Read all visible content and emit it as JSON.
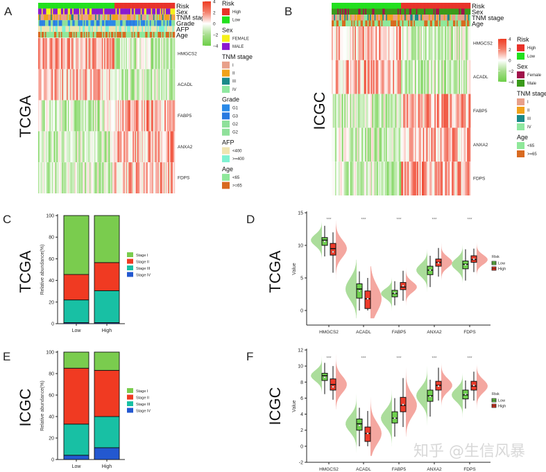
{
  "watermark": "知乎 @生信风暴",
  "panels": {
    "A": {
      "label": "A",
      "cohort": "TCGA"
    },
    "B": {
      "label": "B",
      "cohort": "ICGC"
    },
    "C": {
      "label": "C",
      "cohort": "TCGA"
    },
    "D": {
      "label": "D",
      "cohort": "TCGA"
    },
    "E": {
      "label": "E",
      "cohort": "ICGC"
    },
    "F": {
      "label": "F",
      "cohort": "ICGC"
    }
  },
  "colors": {
    "high": "#e8332a",
    "low": "#22e01e",
    "heat_high": "#ee3b22",
    "heat_mid": "#ffffff",
    "heat_low": "#6ccf47",
    "stage_I": "#7acc4e",
    "stage_II": "#f03a22",
    "stage_III": "#18c0a4",
    "stage_IV": "#2358d0",
    "violin_low": "#8fd27a",
    "violin_high": "#f08a80"
  },
  "chart_data": [
    {
      "panel": "A",
      "type": "heatmap",
      "title": "TCGA",
      "annotation_rows": [
        "Risk",
        "Sex",
        "TNM stage",
        "Grade",
        "AFP",
        "Age"
      ],
      "genes": [
        "HMGCS2",
        "ACADL",
        "FABP5",
        "ANXA2",
        "FDPS"
      ],
      "groups": [
        "Low",
        "High"
      ],
      "low_fraction": 0.56,
      "gene_trend_low_vs_high": {
        "HMGCS2": "higher in Low",
        "ACADL": "higher in Low",
        "FABP5": "higher in High",
        "ANXA2": "higher in High",
        "FDPS": "higher in High"
      },
      "color_scale": {
        "ticks": [
          4,
          2,
          0,
          -2,
          -4
        ]
      },
      "legends": [
        {
          "title": "Risk",
          "items": [
            {
              "label": "High",
              "color": "#e8332a"
            },
            {
              "label": "Low",
              "color": "#22e01e"
            }
          ]
        },
        {
          "title": "Sex",
          "items": [
            {
              "label": "FEMALE",
              "color": "#f5f01a"
            },
            {
              "label": "MALE",
              "color": "#8a1ad0"
            }
          ]
        },
        {
          "title": "TNM stage",
          "items": [
            {
              "label": "I",
              "color": "#e8a08a"
            },
            {
              "label": "II",
              "color": "#f0a21a"
            },
            {
              "label": "III",
              "color": "#1a8a8a"
            },
            {
              "label": "IV",
              "color": "#8fe8a0"
            }
          ]
        },
        {
          "title": "Grade",
          "items": [
            {
              "label": "G1",
              "color": "#2a8ae8"
            },
            {
              "label": "G3",
              "color": "#2a7ae0"
            },
            {
              "label": "G2",
              "color": "#8fe09a"
            },
            {
              "label": "G2",
              "color": "#8fe09a"
            }
          ]
        },
        {
          "title": "AFP",
          "items": [
            {
              "label": "<400",
              "color": "#efe4b0"
            },
            {
              "label": ">=400",
              "color": "#7ff2d2"
            }
          ]
        },
        {
          "title": "Age",
          "items": [
            {
              "label": "<65",
              "color": "#8fe89a"
            },
            {
              "label": ">=65",
              "color": "#d86a20"
            }
          ]
        }
      ]
    },
    {
      "panel": "B",
      "type": "heatmap",
      "title": "ICGC",
      "annotation_rows": [
        "Risk",
        "Sex",
        "TNM stage",
        "Age"
      ],
      "genes": [
        "HMGCS2",
        "ACADL",
        "FABP5",
        "ANXA2",
        "FDPS"
      ],
      "groups": [
        "Low",
        "High"
      ],
      "low_fraction": 0.5,
      "gene_trend_low_vs_high": {
        "HMGCS2": "higher in Low",
        "ACADL": "higher in Low",
        "FABP5": "higher in High",
        "ANXA2": "higher in High",
        "FDPS": "higher in High"
      },
      "color_scale": {
        "ticks": [
          4,
          2,
          0,
          -2,
          -4
        ]
      },
      "legends": [
        {
          "title": "Risk",
          "items": [
            {
              "label": "High",
              "color": "#e8332a"
            },
            {
              "label": "Low",
              "color": "#22e01e"
            }
          ]
        },
        {
          "title": "Sex",
          "items": [
            {
              "label": "Female",
              "color": "#a0124a"
            },
            {
              "label": "Male",
              "color": "#3a9a1a"
            }
          ]
        },
        {
          "title": "TNM stage",
          "items": [
            {
              "label": "I",
              "color": "#e8a08a"
            },
            {
              "label": "II",
              "color": "#f0a21a"
            },
            {
              "label": "III",
              "color": "#1a8a8a"
            },
            {
              "label": "IV",
              "color": "#8fe8a0"
            }
          ]
        },
        {
          "title": "Age",
          "items": [
            {
              "label": "<65",
              "color": "#8fe89a"
            },
            {
              "label": ">=65",
              "color": "#d86a20"
            }
          ]
        }
      ]
    },
    {
      "panel": "C",
      "type": "bar",
      "stacked": true,
      "title": "TCGA",
      "ylabel": "Relative abundance(%)",
      "xlabel": "",
      "ylim": [
        0,
        100
      ],
      "yticks": [
        0,
        20,
        40,
        60,
        80,
        100
      ],
      "categories": [
        "Low",
        "High"
      ],
      "series": [
        {
          "name": "Stage IV",
          "values": [
            1,
            1
          ]
        },
        {
          "name": "Stage III",
          "values": [
            21,
            29.5
          ]
        },
        {
          "name": "Stage II",
          "values": [
            23.5,
            26
          ]
        },
        {
          "name": "Stage I",
          "values": [
            54.5,
            43.5
          ]
        }
      ],
      "legend_order": [
        "Stage I",
        "Stage II",
        "Stage III",
        "Stage IV"
      ],
      "legend": "right"
    },
    {
      "panel": "D",
      "type": "box",
      "subtype": "half-violin with boxplot",
      "title": "TCGA",
      "ylabel": "Value",
      "ylim": [
        -2,
        15
      ],
      "yticks": [
        0,
        5,
        10,
        15
      ],
      "categories": [
        "HMGCS2",
        "ACADL",
        "FABP5",
        "ANXA2",
        "FDPS"
      ],
      "significance": [
        "***",
        "***",
        "***",
        "***",
        "***"
      ],
      "legend_title": "Risk",
      "legend": "right",
      "series": [
        {
          "name": "Low",
          "stats": [
            {
              "min": 8.3,
              "q1": 10.0,
              "median": 10.8,
              "q3": 11.2,
              "max": 13.0,
              "mean": 10.6
            },
            {
              "min": 0.0,
              "q1": 1.9,
              "median": 3.3,
              "q3": 4.1,
              "max": 6.0,
              "mean": 3.0
            },
            {
              "min": 0.8,
              "q1": 2.1,
              "median": 2.6,
              "q3": 3.1,
              "max": 4.5,
              "mean": 2.7
            },
            {
              "min": 3.6,
              "q1": 5.5,
              "median": 6.2,
              "q3": 6.8,
              "max": 8.4,
              "mean": 6.2
            },
            {
              "min": 4.6,
              "q1": 6.4,
              "median": 7.1,
              "q3": 7.6,
              "max": 9.4,
              "mean": 7.0
            }
          ]
        },
        {
          "name": "High",
          "stats": [
            {
              "min": 5.8,
              "q1": 8.5,
              "median": 9.5,
              "q3": 10.3,
              "max": 12.0,
              "mean": 9.0
            },
            {
              "min": 0.0,
              "q1": 0.3,
              "median": 1.8,
              "q3": 3.0,
              "max": 5.0,
              "mean": 1.8
            },
            {
              "min": 1.5,
              "q1": 3.2,
              "median": 3.6,
              "q3": 4.3,
              "max": 6.1,
              "mean": 3.8
            },
            {
              "min": 5.2,
              "q1": 6.8,
              "median": 7.4,
              "q3": 7.9,
              "max": 9.6,
              "mean": 7.3
            },
            {
              "min": 5.9,
              "q1": 7.4,
              "median": 7.8,
              "q3": 8.4,
              "max": 9.5,
              "mean": 7.9
            }
          ]
        }
      ]
    },
    {
      "panel": "E",
      "type": "bar",
      "stacked": true,
      "title": "ICGC",
      "ylabel": "Relative abundance(%)",
      "xlabel": "",
      "ylim": [
        0,
        100
      ],
      "yticks": [
        0,
        20,
        40,
        60,
        80,
        100
      ],
      "categories": [
        "Low",
        "High"
      ],
      "series": [
        {
          "name": "Stage IV",
          "values": [
            4,
            11
          ]
        },
        {
          "name": "Stage III",
          "values": [
            29,
            29
          ]
        },
        {
          "name": "Stage II",
          "values": [
            52,
            43
          ]
        },
        {
          "name": "Stage I",
          "values": [
            15,
            17
          ]
        }
      ],
      "legend_order": [
        "Stage I",
        "Stage II",
        "Stage III",
        "Stage IV"
      ],
      "legend": "right"
    },
    {
      "panel": "F",
      "type": "box",
      "subtype": "half-violin with boxplot",
      "title": "ICGC",
      "ylabel": "Value",
      "ylim": [
        -2,
        12
      ],
      "yticks": [
        -2,
        0,
        2,
        4,
        6,
        8,
        10,
        12
      ],
      "categories": [
        "HMGCS2",
        "ACADL",
        "FABP5",
        "ANXA2",
        "FDPS"
      ],
      "significance": [
        "***",
        "***",
        "***",
        "***",
        "***"
      ],
      "legend_title": "Risk",
      "legend": "right",
      "series": [
        {
          "name": "Low",
          "stats": [
            {
              "min": 6.5,
              "q1": 8.2,
              "median": 8.8,
              "q3": 9.1,
              "max": 10.4,
              "mean": 8.6
            },
            {
              "min": 0.0,
              "q1": 2.0,
              "median": 2.8,
              "q3": 3.4,
              "max": 4.8,
              "mean": 2.6
            },
            {
              "min": 1.2,
              "q1": 2.9,
              "median": 3.5,
              "q3": 4.3,
              "max": 6.0,
              "mean": 3.5
            },
            {
              "min": 3.7,
              "q1": 5.6,
              "median": 6.3,
              "q3": 7.0,
              "max": 8.3,
              "mean": 6.2
            },
            {
              "min": 4.7,
              "q1": 5.9,
              "median": 6.4,
              "q3": 7.0,
              "max": 8.2,
              "mean": 6.5
            }
          ]
        },
        {
          "name": "High",
          "stats": [
            {
              "min": 5.8,
              "q1": 7.0,
              "median": 7.7,
              "q3": 8.4,
              "max": 10.0,
              "mean": 7.4
            },
            {
              "min": 0.0,
              "q1": 0.6,
              "median": 1.6,
              "q3": 2.4,
              "max": 4.4,
              "mean": 1.6
            },
            {
              "min": 2.4,
              "q1": 4.3,
              "median": 5.1,
              "q3": 6.1,
              "max": 8.5,
              "mean": 5.2
            },
            {
              "min": 5.7,
              "q1": 7.0,
              "median": 7.6,
              "q3": 8.1,
              "max": 9.8,
              "mean": 7.5
            },
            {
              "min": 5.7,
              "q1": 7.0,
              "median": 7.5,
              "q3": 8.1,
              "max": 9.3,
              "mean": 7.6
            }
          ]
        }
      ]
    }
  ]
}
